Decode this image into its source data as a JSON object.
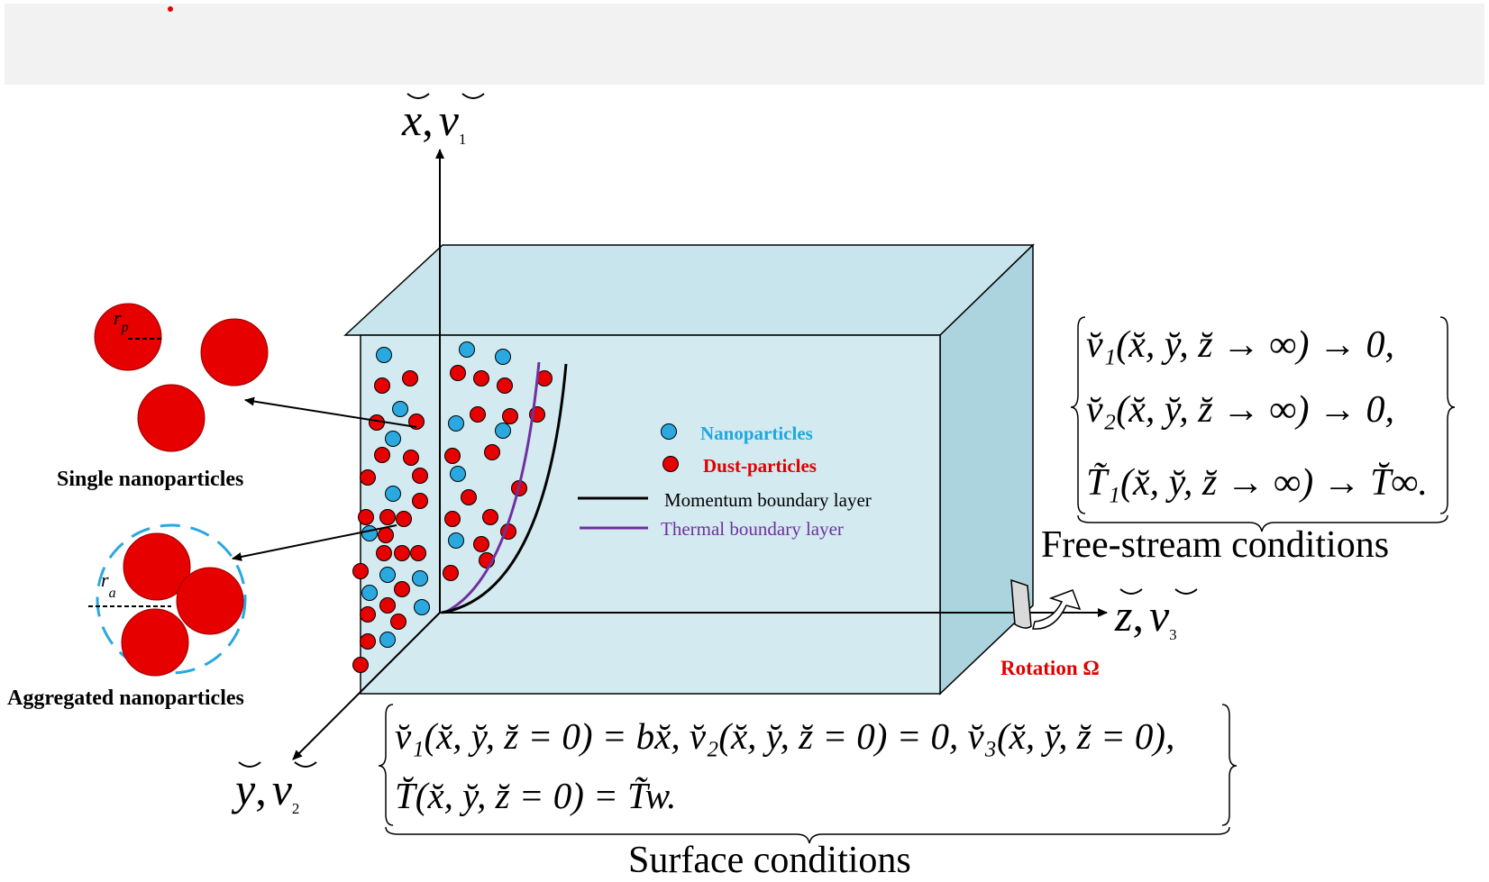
{
  "legend": {
    "nanoparticles": "Nanoparticles",
    "dust_particles": "Dust-particles",
    "momentum_layer": "Momentum boundary layer",
    "thermal_layer": "Thermal boundary layer"
  },
  "labels": {
    "single": "Single nanoparticles",
    "aggregated": "Aggregated nanoparticles",
    "rotation": "Rotation Ω",
    "free_stream": "Free-stream conditions",
    "surface": "Surface conditions",
    "r_p": "r",
    "r_p_sub": "p",
    "r_a": "r",
    "r_a_sub": "a"
  },
  "axes": {
    "x_axis": {
      "var": "x",
      "sep": ",",
      "vel": "v",
      "sub": "1"
    },
    "y_axis": {
      "var": "y",
      "sep": ",",
      "vel": "v",
      "sub": "2"
    },
    "z_axis": {
      "var": "z",
      "sep": ",",
      "vel": "v",
      "sub": "3"
    }
  },
  "free_stream_eqs": [
    "v̆₁(x̆, y̆, z̆ → ∞) → 0,",
    "v̆₂(x̆, y̆, z̆ → ∞) → 0,",
    "T̃₁(x̆, y̆, z̆ → ∞) → T̆∞."
  ],
  "surface_eqs": [
    "v̆₁(x̆, y̆, z̆ = 0) = bx̆, v̆₂(x̆, y̆, z̆ = 0) = 0, v̆₃(x̆, y̆, z̆ = 0),",
    "T̆(x̆, y̆, z̆ = 0) = T̃w."
  ],
  "colors": {
    "box_fill": "#d3eaf0",
    "box_side": "#acd4df",
    "box_top": "#c3e2ea",
    "nano_blue": "#2aa9e0",
    "dust_red": "#e60000",
    "thermal_purple": "#7030a0",
    "nano_label": "#1fa7e0",
    "rotation_label": "#e00000"
  }
}
